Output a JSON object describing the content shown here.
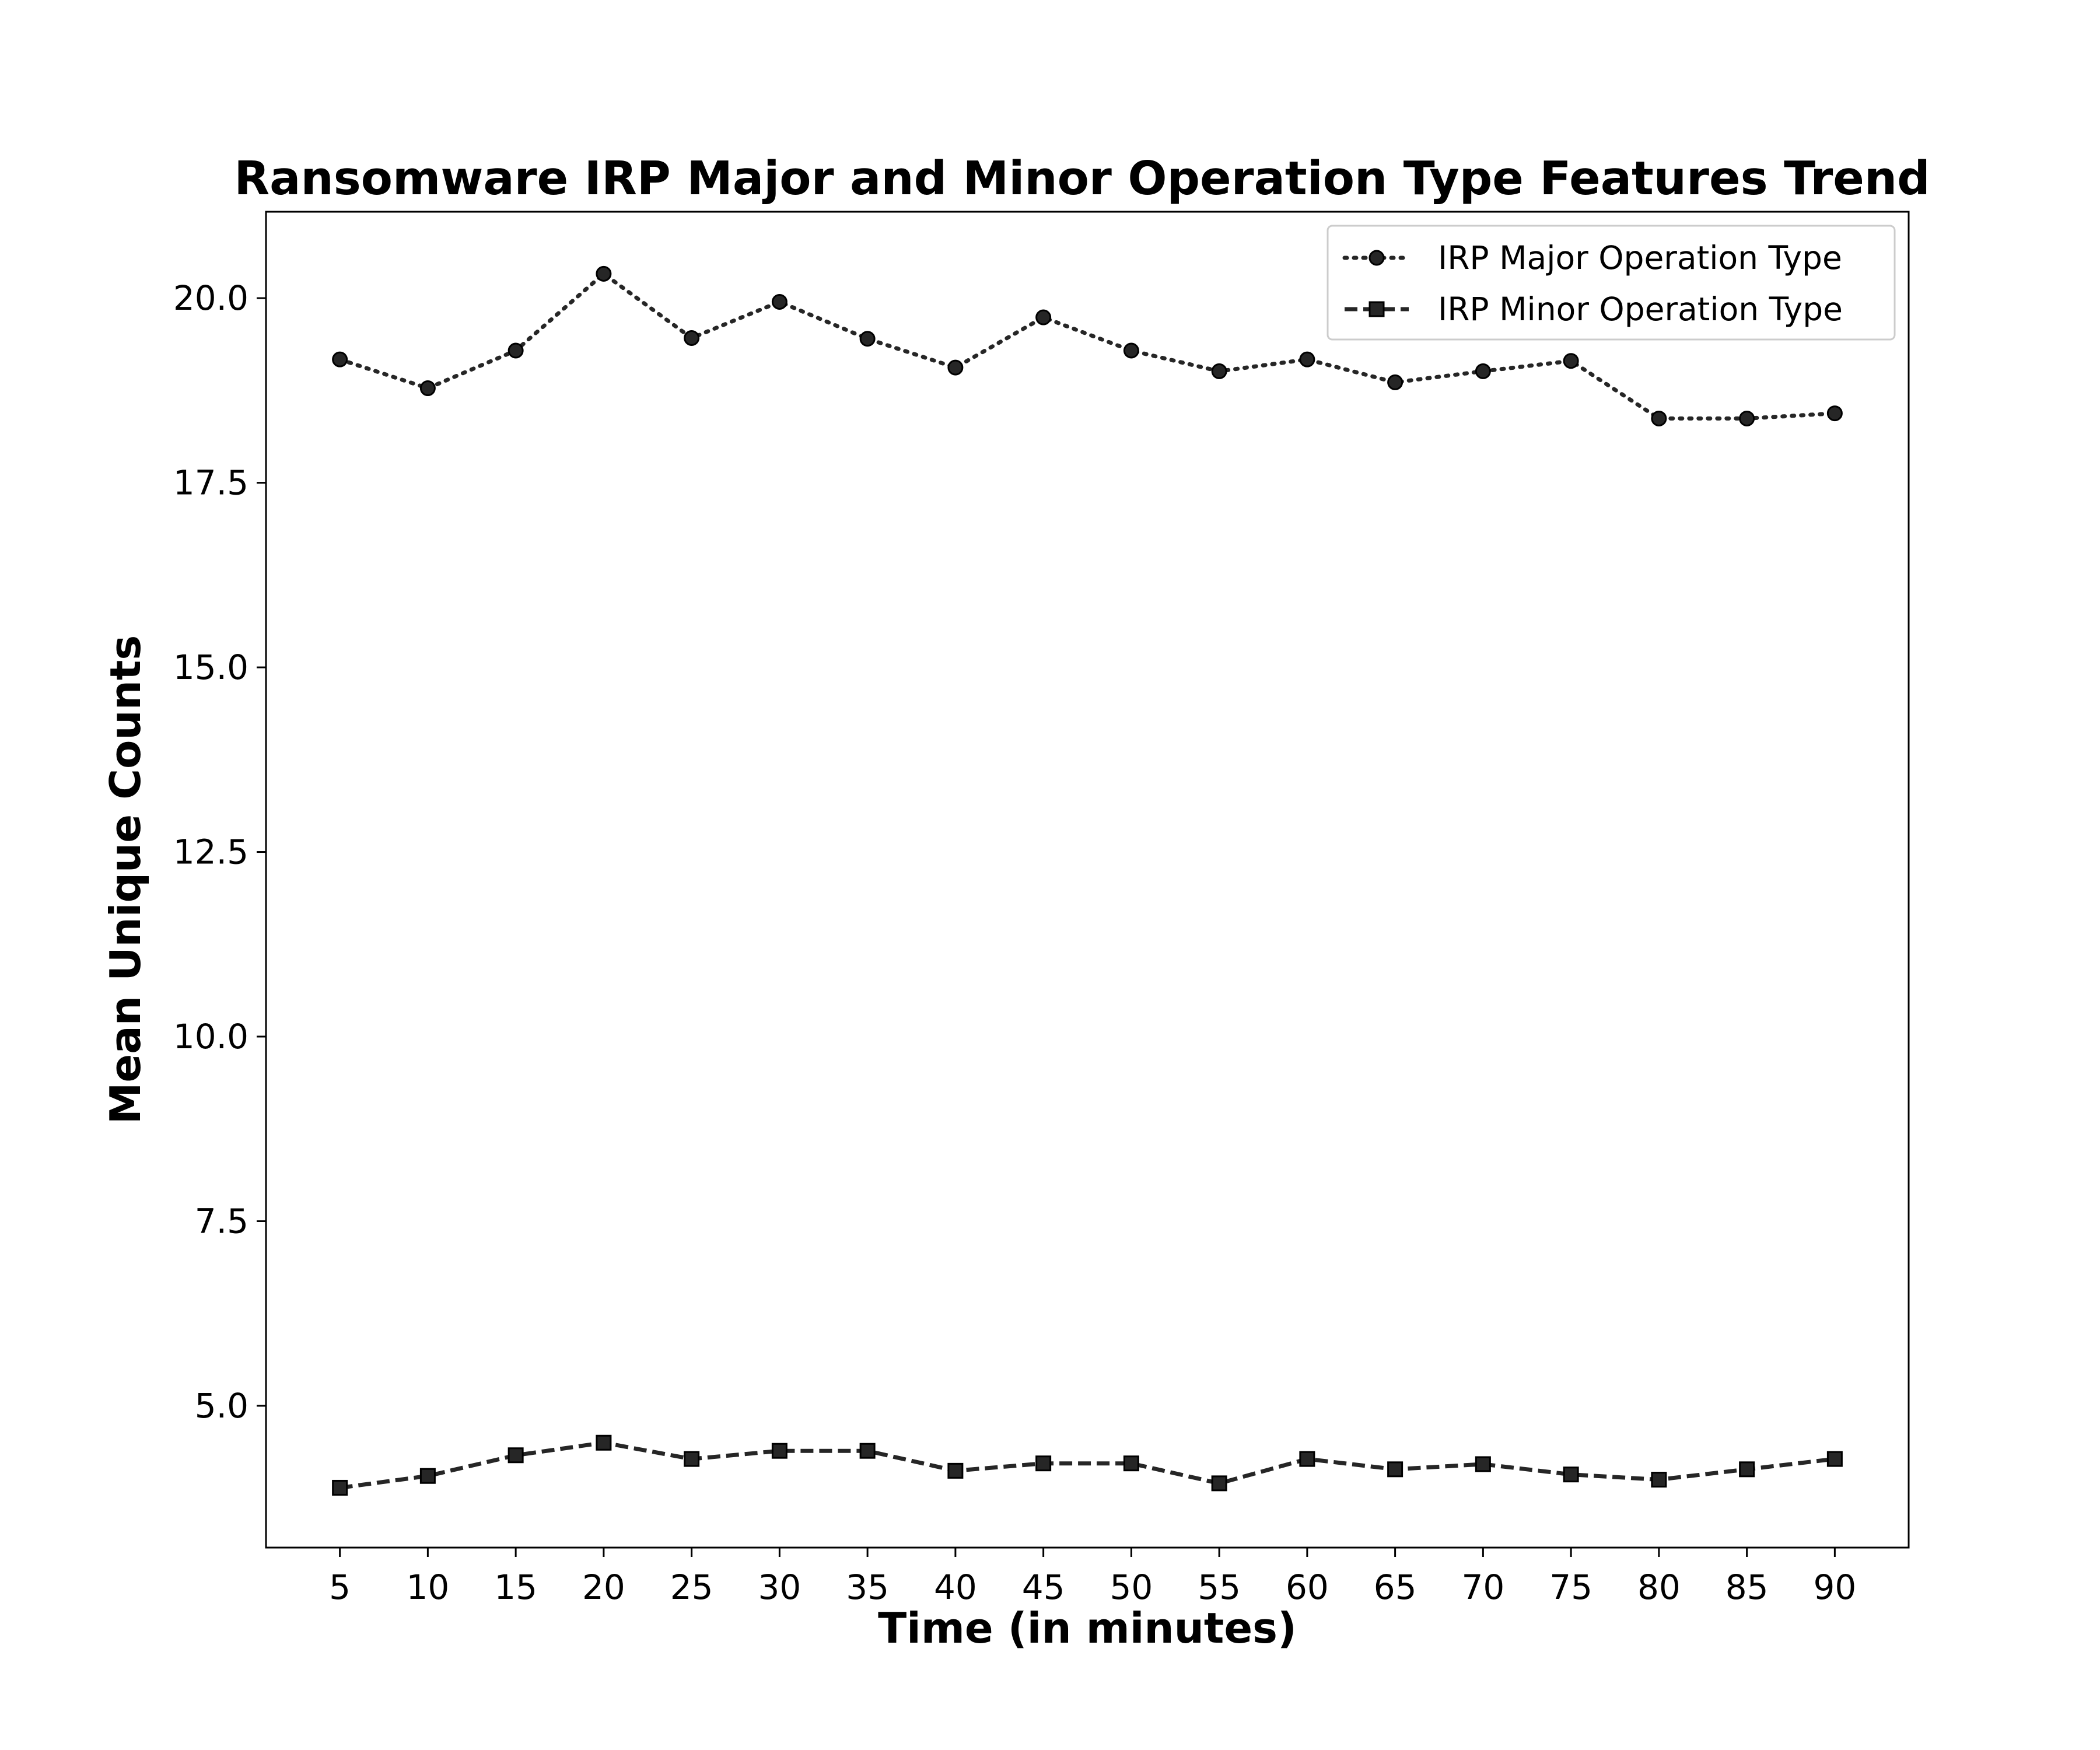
{
  "chart_data": {
    "type": "line",
    "title": "Ransomware IRP Major and Minor Operation Type Features Trend",
    "xlabel": "Time (in minutes)",
    "ylabel": "Mean Unique Counts",
    "x": [
      5,
      10,
      15,
      20,
      25,
      30,
      35,
      40,
      45,
      50,
      55,
      60,
      65,
      70,
      75,
      80,
      85,
      90
    ],
    "x_tick_labels": [
      "5",
      "10",
      "15",
      "20",
      "25",
      "30",
      "35",
      "40",
      "45",
      "50",
      "55",
      "60",
      "65",
      "70",
      "75",
      "80",
      "85",
      "90"
    ],
    "xlim": [
      0.8,
      94.2
    ],
    "ylim": [
      3.08,
      21.17
    ],
    "y_ticks": [
      5.0,
      7.5,
      10.0,
      12.5,
      15.0,
      17.5,
      20.0
    ],
    "y_tick_labels": [
      "5.0",
      "7.5",
      "10.0",
      "12.5",
      "15.0",
      "17.5",
      "20.0"
    ],
    "grid": false,
    "legend_position": "top-right",
    "series": [
      {
        "name": "IRP Major Operation Type",
        "line_style": "dotted",
        "marker": "circle",
        "color": "#262626",
        "values": [
          19.17,
          18.78,
          19.29,
          20.33,
          19.46,
          19.95,
          19.45,
          19.06,
          19.74,
          19.29,
          19.01,
          19.17,
          18.86,
          19.01,
          19.15,
          18.37,
          18.37,
          18.44
        ]
      },
      {
        "name": "IRP Minor Operation Type",
        "line_style": "dashed",
        "marker": "square",
        "color": "#262626",
        "values": [
          3.89,
          4.05,
          4.33,
          4.5,
          4.28,
          4.39,
          4.39,
          4.12,
          4.22,
          4.22,
          3.95,
          4.28,
          4.14,
          4.21,
          4.07,
          4.0,
          4.14,
          4.28
        ]
      }
    ]
  }
}
